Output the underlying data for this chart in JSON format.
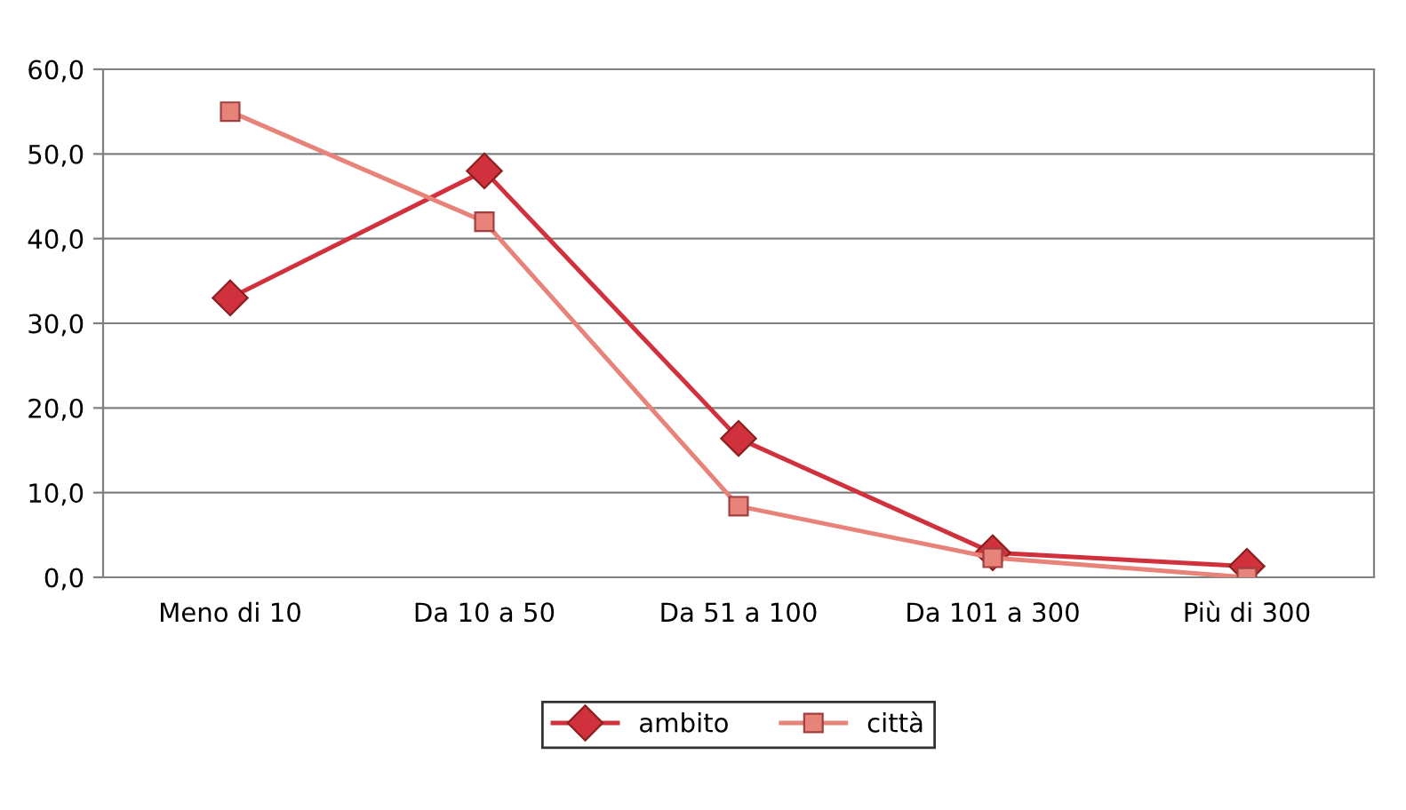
{
  "chart_data": {
    "type": "line",
    "categories": [
      "Meno di 10",
      "Da 10 a 50",
      "Da 51 a 100",
      "Da 101 a 300",
      "Più di 300"
    ],
    "series": [
      {
        "name": "ambito",
        "color": "#d0313d",
        "marker": "diamond",
        "values": [
          33.0,
          48.0,
          16.4,
          2.9,
          1.3
        ]
      },
      {
        "name": "città",
        "color": "#e8837a",
        "marker": "square",
        "values": [
          55.0,
          42.0,
          8.4,
          2.3,
          0.0
        ]
      }
    ],
    "ylim": [
      0,
      60
    ],
    "yticks": [
      {
        "value": 0,
        "label": "0,0"
      },
      {
        "value": 10,
        "label": "10,0"
      },
      {
        "value": 20,
        "label": "20,0"
      },
      {
        "value": 30,
        "label": "30,0"
      },
      {
        "value": 40,
        "label": "40,0"
      },
      {
        "value": 50,
        "label": "50,0"
      },
      {
        "value": 60,
        "label": "60,0"
      }
    ],
    "grid": "y",
    "legend": "bottom",
    "line_style": "solid"
  }
}
